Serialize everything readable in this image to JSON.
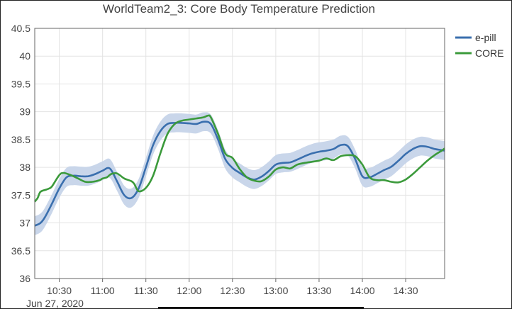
{
  "chart_data": {
    "type": "line",
    "title": "WorldTeam2_3: Core Body Temperature Prediction",
    "date_label": "Jun 27, 2020",
    "x_range": [
      "2020-06-27 10:13",
      "2020-06-27 14:57"
    ],
    "ylim": [
      36,
      40.5
    ],
    "x_ticks": [
      "10:30",
      "11:00",
      "11:30",
      "12:00",
      "12:30",
      "13:00",
      "13:30",
      "14:00",
      "14:30"
    ],
    "y_ticks": [
      "40.5",
      "40",
      "39.5",
      "39",
      "38.5",
      "38",
      "37.5",
      "37",
      "36.5",
      "36"
    ],
    "grid": true,
    "legend_position": "top-right",
    "series": [
      {
        "name": "e-pill",
        "color": "#3a6fae",
        "band_color": "#c3d2e8",
        "band_halfwidth": 0.17,
        "x": [
          "10:13",
          "10:17",
          "10:20",
          "10:25",
          "10:30",
          "10:35",
          "10:40",
          "10:45",
          "10:50",
          "10:55",
          "11:00",
          "11:05",
          "11:10",
          "11:15",
          "11:20",
          "11:25",
          "11:30",
          "11:35",
          "11:40",
          "11:45",
          "11:50",
          "11:55",
          "12:00",
          "12:05",
          "12:10",
          "12:15",
          "12:20",
          "12:25",
          "12:30",
          "12:35",
          "12:40",
          "12:45",
          "12:50",
          "12:55",
          "13:00",
          "13:05",
          "13:10",
          "13:15",
          "13:20",
          "13:25",
          "13:30",
          "13:35",
          "13:40",
          "13:45",
          "13:50",
          "13:55",
          "14:00",
          "14:05",
          "14:10",
          "14:15",
          "14:20",
          "14:25",
          "14:30",
          "14:35",
          "14:40",
          "14:45",
          "14:50",
          "14:55",
          "14:57"
        ],
        "y": [
          36.95,
          37.0,
          37.1,
          37.35,
          37.62,
          37.82,
          37.85,
          37.84,
          37.84,
          37.88,
          37.94,
          37.98,
          37.75,
          37.5,
          37.45,
          37.62,
          38.0,
          38.4,
          38.65,
          38.78,
          38.8,
          38.8,
          38.79,
          38.78,
          38.82,
          38.78,
          38.5,
          38.15,
          37.99,
          37.9,
          37.82,
          37.78,
          37.83,
          37.93,
          38.05,
          38.08,
          38.09,
          38.14,
          38.2,
          38.25,
          38.28,
          38.3,
          38.33,
          38.4,
          38.38,
          38.15,
          37.84,
          37.82,
          37.88,
          37.95,
          38.01,
          38.12,
          38.24,
          38.33,
          38.38,
          38.37,
          38.33,
          38.31,
          38.3
        ]
      },
      {
        "name": "CORE",
        "color": "#3b9a3b",
        "x": [
          "10:13",
          "10:15",
          "10:17",
          "10:21",
          "10:23",
          "10:25",
          "10:30",
          "10:33",
          "10:38",
          "10:43",
          "10:48",
          "10:53",
          "10:58",
          "11:00",
          "11:03",
          "11:06",
          "11:10",
          "11:15",
          "11:20",
          "11:22",
          "11:25",
          "11:30",
          "11:35",
          "11:40",
          "11:45",
          "11:50",
          "11:55",
          "12:00",
          "12:05",
          "12:10",
          "12:13",
          "12:15",
          "12:20",
          "12:25",
          "12:30",
          "12:35",
          "12:40",
          "12:45",
          "12:50",
          "12:55",
          "13:00",
          "13:05",
          "13:10",
          "13:15",
          "13:20",
          "13:25",
          "13:30",
          "13:35",
          "13:40",
          "13:45",
          "13:50",
          "13:55",
          "14:00",
          "14:05",
          "14:10",
          "14:15",
          "14:20",
          "14:25",
          "14:30",
          "14:35",
          "14:40",
          "14:45",
          "14:50",
          "14:55",
          "14:57"
        ],
        "y": [
          37.38,
          37.45,
          37.56,
          37.6,
          37.62,
          37.66,
          37.86,
          37.9,
          37.86,
          37.8,
          37.74,
          37.74,
          37.77,
          37.8,
          37.82,
          37.88,
          37.89,
          37.8,
          37.75,
          37.7,
          37.57,
          37.63,
          37.85,
          38.25,
          38.6,
          38.78,
          38.84,
          38.86,
          38.88,
          38.9,
          38.93,
          38.9,
          38.6,
          38.25,
          38.17,
          37.97,
          37.82,
          37.76,
          37.75,
          37.83,
          37.96,
          38.0,
          37.98,
          38.05,
          38.08,
          38.1,
          38.12,
          38.16,
          38.13,
          38.2,
          38.22,
          38.2,
          38.05,
          37.82,
          37.77,
          37.77,
          37.74,
          37.73,
          37.78,
          37.88,
          38.0,
          38.12,
          38.22,
          38.3,
          38.34
        ]
      }
    ]
  }
}
